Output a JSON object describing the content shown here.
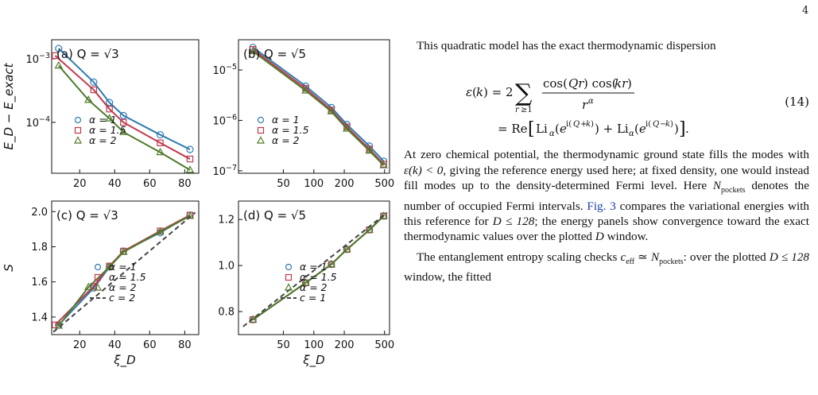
{
  "page_number": "4",
  "figure": {
    "ylabel_top": "E_D − E_exact",
    "ylabel_bottom": "S",
    "xlabel": "ξ_D",
    "legend_alpha": [
      "α = 1",
      "α = 1.5",
      "α = 2"
    ],
    "colors": {
      "alpha1": "#2f7bb0",
      "alpha15": "#c03a4e",
      "alpha2": "#4f7a2a",
      "fit": "#444444"
    }
  },
  "chart_data": [
    {
      "type": "line",
      "panel": "(a) Q = √3",
      "yscale": "log",
      "xlim": [
        4,
        88
      ],
      "ylim": [
        1.581e-05,
        0.001995
      ],
      "xticks": [
        20,
        40,
        60,
        80
      ],
      "yticks_labels": [
        "10^-3",
        "10^-4"
      ],
      "series": [
        {
          "name": "α = 1",
          "x": [
            8,
            28,
            37,
            45,
            66,
            83
          ],
          "y": [
            0.00145,
            0.00043,
            0.000205,
            0.000128,
            6.38e-05,
            3.75e-05
          ]
        },
        {
          "name": "α = 1.5",
          "x": [
            6,
            28,
            37,
            45,
            66,
            83
          ],
          "y": [
            0.00112,
            0.000325,
            0.000162,
            0.0001,
            4.75e-05,
            2.65e-05
          ]
        },
        {
          "name": "α = 2",
          "x": [
            8,
            25,
            37,
            45,
            66,
            83
          ],
          "y": [
            0.00078,
            0.000225,
            0.000115,
            7.02e-05,
            3.38e-05,
            1.78e-05
          ]
        }
      ]
    },
    {
      "type": "line",
      "panel": "(b) Q = √5",
      "xscale": "log",
      "yscale": "log",
      "xlim": [
        18,
        560
      ],
      "ylim": [
        8.93e-08,
        3.98e-05
      ],
      "xticks": [
        50,
        100,
        200,
        500
      ],
      "yticks_labels": [
        "10^-5",
        "10^-6",
        "10^-7"
      ],
      "series": [
        {
          "name": "α = 1",
          "x": [
            25,
            83,
            149,
            212,
            354,
            490
          ],
          "y": [
            2.8e-05,
            4.8e-06,
            1.8e-06,
            8.3e-07,
            3.1e-07,
            1.55e-07
          ]
        },
        {
          "name": "α = 1.5",
          "x": [
            25,
            83,
            149,
            212,
            354,
            490
          ],
          "y": [
            2.55e-05,
            4.3e-06,
            1.6e-06,
            7.4e-07,
            2.7e-07,
            1.35e-07
          ]
        },
        {
          "name": "α = 2",
          "x": [
            25,
            83,
            149,
            212,
            354,
            490
          ],
          "y": [
            2.35e-05,
            3.9e-06,
            1.5e-06,
            6.8e-07,
            2.5e-07,
            1.28e-07
          ]
        }
      ]
    },
    {
      "type": "line",
      "panel": "(c) Q = √3",
      "xlim": [
        4,
        88
      ],
      "ylim": [
        1.3,
        2.06
      ],
      "xticks": [
        20,
        40,
        60,
        80
      ],
      "yticks": [
        1.4,
        1.6,
        1.8,
        2.0
      ],
      "series": [
        {
          "name": "α = 1",
          "x": [
            8,
            28,
            37,
            45,
            66,
            83
          ],
          "y": [
            1.355,
            1.565,
            1.685,
            1.775,
            1.88,
            1.98
          ]
        },
        {
          "name": "α = 1.5",
          "x": [
            6,
            28,
            37,
            45,
            66,
            83
          ],
          "y": [
            1.355,
            1.575,
            1.69,
            1.775,
            1.89,
            1.98
          ]
        },
        {
          "name": "α = 2",
          "x": [
            8,
            25,
            37,
            45,
            66,
            83
          ],
          "y": [
            1.35,
            1.57,
            1.685,
            1.77,
            1.885,
            1.975
          ]
        },
        {
          "name": "c = 2",
          "x": [
            5,
            86
          ],
          "y": [
            1.315,
            1.995
          ]
        }
      ]
    },
    {
      "type": "line",
      "panel": "(d) Q = √5",
      "xscale": "log",
      "xlim": [
        18,
        560
      ],
      "ylim": [
        0.7,
        1.28
      ],
      "xticks": [
        50,
        100,
        200,
        500
      ],
      "yticks": [
        0.8,
        1.0,
        1.2
      ],
      "series": [
        {
          "name": "α = 1",
          "x": [
            25,
            83,
            149,
            212,
            354,
            490
          ],
          "y": [
            0.765,
            0.925,
            1.005,
            1.07,
            1.155,
            1.215
          ]
        },
        {
          "name": "α = 1.5",
          "x": [
            25,
            83,
            149,
            212,
            354,
            490
          ],
          "y": [
            0.765,
            0.925,
            1.005,
            1.07,
            1.155,
            1.215
          ]
        },
        {
          "name": "α = 2",
          "x": [
            25,
            83,
            149,
            212,
            354,
            490
          ],
          "y": [
            0.765,
            0.925,
            1.005,
            1.07,
            1.155,
            1.215
          ]
        },
        {
          "name": "c = 1",
          "x": [
            20,
            530
          ],
          "y": [
            0.735,
            1.23
          ]
        }
      ]
    }
  ],
  "text": {
    "p1": "This quadratic model has the exact thermodynamic dispersion",
    "eq_number": "(14)",
    "p2a": "At zero chemical potential, the thermodynamic ground state fills the modes with ",
    "p2_cond": "ε(k) < 0",
    "p2b": ", giving the reference energy used here; at fixed density, one would instead fill modes up to the density-determined Fermi level. Here ",
    "p2_npockets": "N",
    "p2_npockets_sub": "pockets",
    "p2c": " denotes the number of occupied Fermi intervals. ",
    "fig_ref": "Fig. 3",
    "p2d": " compares the variational energies with this reference for ",
    "p2_D": "D ≤ 128",
    "p2e": "; the energy panels show convergence toward the exact thermodynamic values over the plotted ",
    "p2_D2": "D",
    "p2f": " window.",
    "p3a": "The entanglement entropy scaling checks ",
    "p3_ceff": "c",
    "p3_ceff_sub": "eff",
    "p3_simeq": " ≃ ",
    "p3_np": "N",
    "p3_np_sub": "pockets",
    "p3b": ": over the plotted ",
    "p3_D": "D ≤ 128",
    "p3c": " window, the fitted"
  }
}
